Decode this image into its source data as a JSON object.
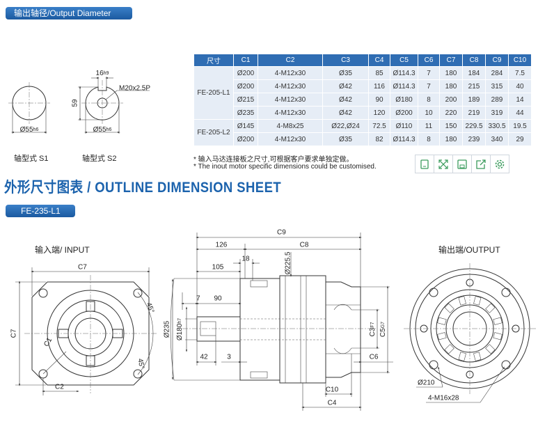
{
  "header": {
    "tab": "输出轴径/Output Diameter"
  },
  "shafts": [
    {
      "caption": "轴型式 S1",
      "diameter": {
        "text": "Ø55",
        "tol": "h6"
      }
    },
    {
      "caption": "轴型式 S2",
      "diameter": {
        "text": "Ø55",
        "tol": "h6"
      },
      "key_width": {
        "text": "16",
        "tol": "h9"
      },
      "thread": "M20x2.5P",
      "height": "59"
    }
  ],
  "table": {
    "header": [
      "尺寸",
      "C1",
      "C2",
      "C3",
      "C4",
      "C5",
      "C6",
      "C7",
      "C8",
      "C9",
      "C10"
    ],
    "groups": [
      {
        "model": "FE-205-L1",
        "rows": [
          [
            "Ø200",
            "4-M12x30",
            "Ø35",
            "85",
            "Ø114.3",
            "7",
            "180",
            "184",
            "284",
            "7.5"
          ],
          [
            "Ø200",
            "4-M12x30",
            "Ø42",
            "116",
            "Ø114.3",
            "7",
            "180",
            "215",
            "315",
            "40"
          ],
          [
            "Ø215",
            "4-M12x30",
            "Ø42",
            "90",
            "Ø180",
            "8",
            "200",
            "189",
            "289",
            "14"
          ],
          [
            "Ø235",
            "4-M12x30",
            "Ø42",
            "120",
            "Ø200",
            "10",
            "220",
            "219",
            "319",
            "44"
          ]
        ]
      },
      {
        "model": "FE-205-L2",
        "rows": [
          [
            "Ø145",
            "4-M8x25",
            "Ø22,Ø24",
            "72.5",
            "Ø110",
            "11",
            "150",
            "229.5",
            "330.5",
            "19.5"
          ],
          [
            "Ø200",
            "4-M12x30",
            "Ø35",
            "82",
            "Ø114.3",
            "8",
            "180",
            "239",
            "340",
            "29"
          ]
        ]
      }
    ]
  },
  "notes": [
    "* 输入马达连接板之尺寸,可根据客户要求单独定做。",
    "* The inout motor  specific dimensions could be customised."
  ],
  "section_title": "外形尺寸图表 / OUTLINE DIMENSION SHEET",
  "model_tab": "FE-235-L1",
  "drawing": {
    "input_label": "输入端/ INPUT",
    "output_label": "输出端/OUTPUT",
    "dims": [
      {
        "text": "C7"
      },
      {
        "text": "C7"
      },
      {
        "text": "45°"
      },
      {
        "text": "45°"
      },
      {
        "text": "C1"
      },
      {
        "text": "C2"
      },
      {
        "text": "C9"
      },
      {
        "text": "126"
      },
      {
        "text": "C8"
      },
      {
        "text": "18"
      },
      {
        "text": "105"
      },
      {
        "text": "Ø225.5"
      },
      {
        "text": "7"
      },
      {
        "text": "90"
      },
      {
        "text": "Ø235"
      },
      {
        "text": "Ø180",
        "tol": "h7"
      },
      {
        "text": "42"
      },
      {
        "text": "3"
      },
      {
        "text": "C3",
        "tol": "F7"
      },
      {
        "text": "C5",
        "tol": "G7"
      },
      {
        "text": "C6"
      },
      {
        "text": "C10"
      },
      {
        "text": "C4"
      },
      {
        "text": "Ø210"
      },
      {
        "text": "4-M16x28"
      }
    ]
  }
}
